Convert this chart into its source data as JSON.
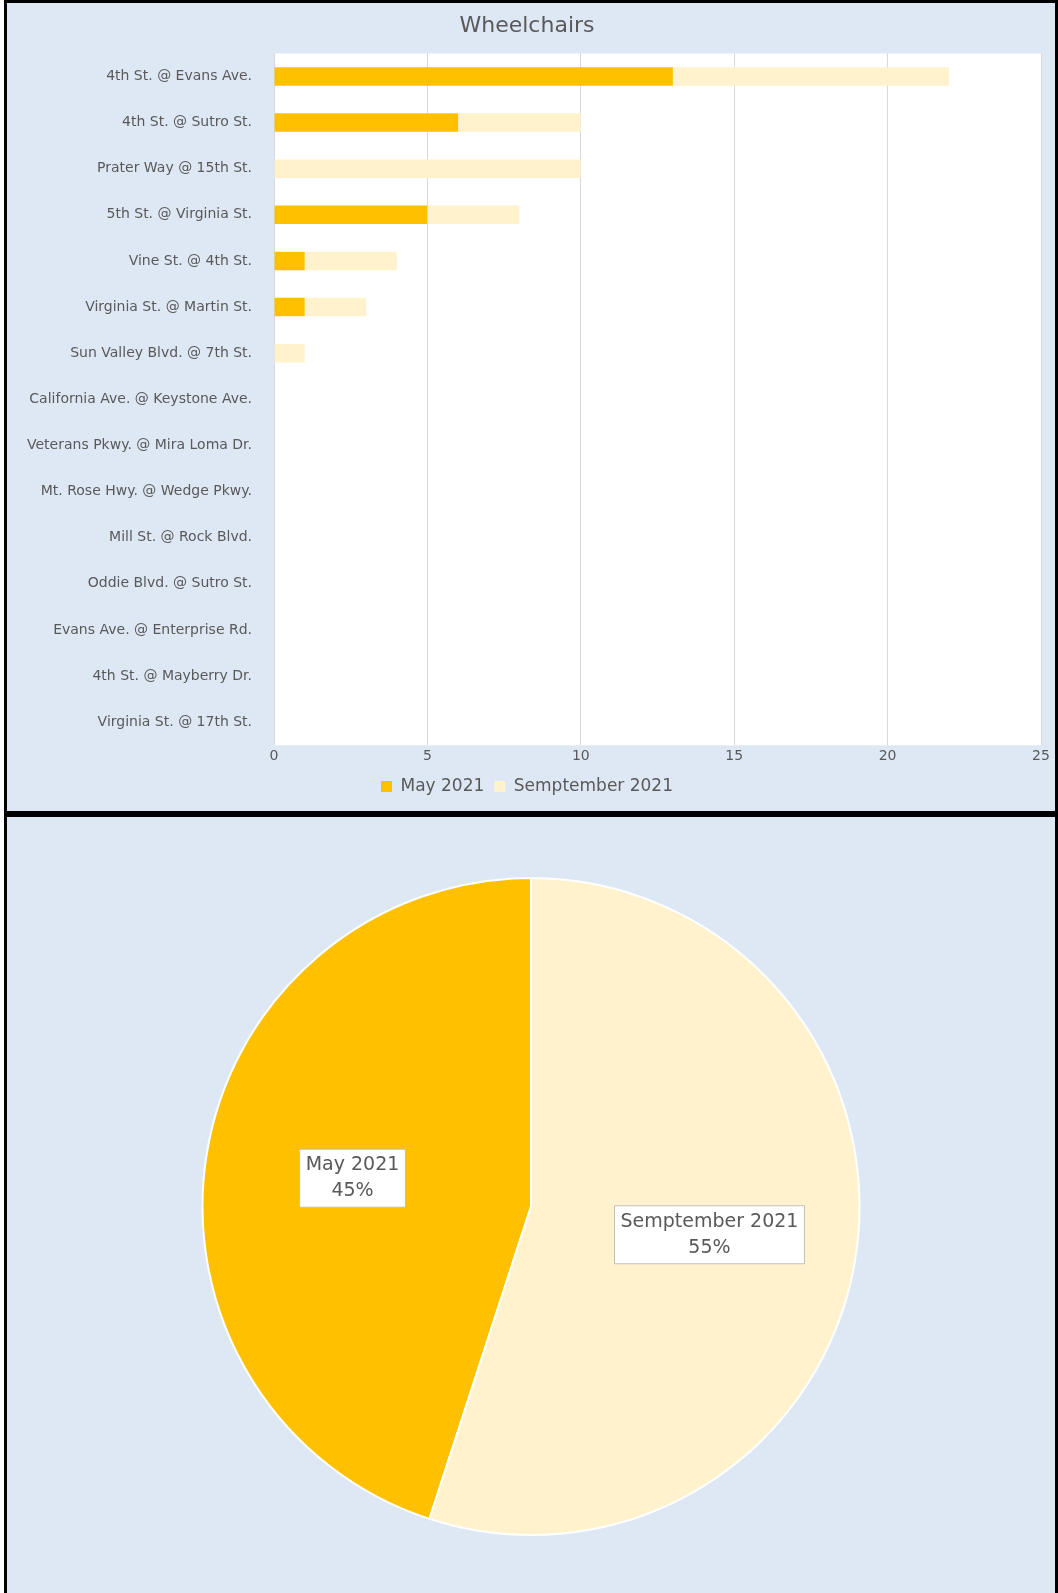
{
  "chart_data": [
    {
      "type": "bar",
      "title": "Wheelchairs",
      "orientation": "horizontal",
      "stacked": true,
      "categories": [
        "4th St. @ Evans Ave.",
        "4th St. @ Sutro St.",
        "Prater Way @ 15th St.",
        "5th St. @ Virginia St.",
        "Vine St. @ 4th St.",
        "Virginia St. @ Martin St.",
        "Sun Valley Blvd. @ 7th St.",
        "California Ave. @ Keystone Ave.",
        "Veterans Pkwy. @ Mira Loma Dr.",
        "Mt. Rose Hwy. @ Wedge Pkwy.",
        "Mill St. @ Rock Blvd.",
        "Oddie Blvd. @ Sutro St.",
        "Evans Ave. @ Enterprise Rd.",
        "4th St. @ Mayberry Dr.",
        "Virginia St. @ 17th St."
      ],
      "series": [
        {
          "name": "May 2021",
          "color": "#ffc000",
          "values": [
            13,
            6,
            0,
            5,
            1,
            1,
            0,
            0,
            0,
            0,
            0,
            0,
            0,
            0,
            0
          ]
        },
        {
          "name": "Semptember 2021",
          "color": "#fff2cc",
          "values": [
            9,
            4,
            10,
            3,
            3,
            2,
            1,
            0,
            0,
            0,
            0,
            0,
            0,
            0,
            0
          ]
        }
      ],
      "xlim": [
        0,
        25
      ],
      "xticks": [
        0,
        5,
        10,
        15,
        20,
        25
      ],
      "grid": "x",
      "legend": "bottom"
    },
    {
      "type": "pie",
      "categories": [
        "May 2021",
        "Semptember 2021"
      ],
      "values": [
        45,
        55
      ],
      "colors": [
        "#ffc000",
        "#fff2cc"
      ],
      "value_labels": [
        "45%",
        "55%"
      ],
      "legend": false
    }
  ]
}
